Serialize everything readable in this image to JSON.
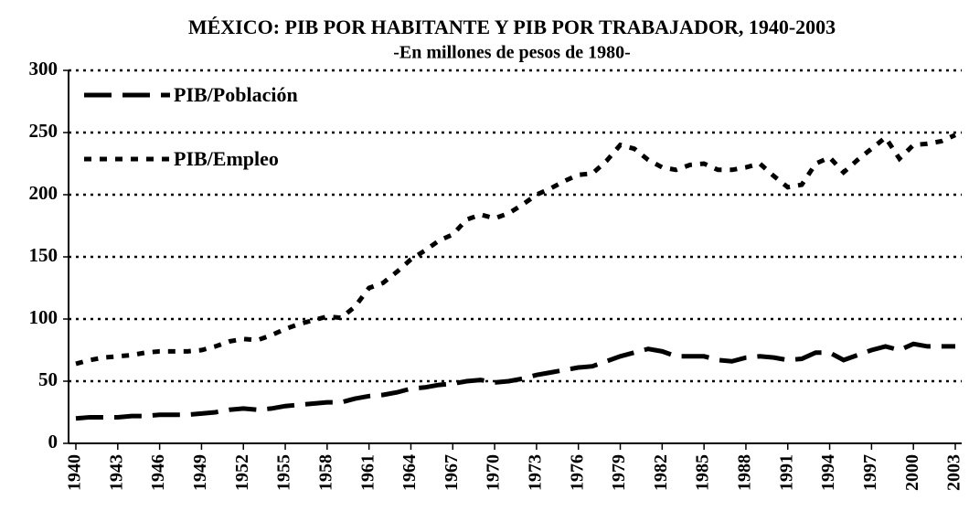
{
  "chart_data": {
    "type": "line",
    "title": "MÉXICO: PIB POR HABITANTE Y PIB POR TRABAJADOR, 1940-2003",
    "subtitle": "-En millones de pesos de 1980-",
    "x": [
      1940,
      1941,
      1942,
      1943,
      1944,
      1945,
      1946,
      1947,
      1948,
      1949,
      1950,
      1951,
      1952,
      1953,
      1954,
      1955,
      1956,
      1957,
      1958,
      1959,
      1960,
      1961,
      1962,
      1963,
      1964,
      1965,
      1966,
      1967,
      1968,
      1969,
      1970,
      1971,
      1972,
      1973,
      1974,
      1975,
      1976,
      1977,
      1978,
      1979,
      1980,
      1981,
      1982,
      1983,
      1984,
      1985,
      1986,
      1987,
      1988,
      1989,
      1990,
      1991,
      1992,
      1993,
      1994,
      1995,
      1996,
      1997,
      1998,
      1999,
      2000,
      2001,
      2002,
      2003
    ],
    "series": [
      {
        "name": "PIB/Población",
        "color": "#000000",
        "dash": "long",
        "values": [
          20,
          21,
          21,
          21,
          22,
          22,
          23,
          23,
          23,
          24,
          25,
          27,
          28,
          27,
          28,
          30,
          31,
          32,
          33,
          33,
          36,
          38,
          39,
          41,
          44,
          45,
          47,
          48,
          50,
          51,
          49,
          50,
          52,
          55,
          57,
          59,
          61,
          62,
          66,
          70,
          73,
          76,
          74,
          70,
          70,
          70,
          67,
          66,
          69,
          70,
          69,
          67,
          68,
          73,
          73,
          67,
          71,
          75,
          78,
          75,
          80,
          78,
          78,
          78
        ]
      },
      {
        "name": "PIB/Empleo",
        "color": "#000000",
        "dash": "short",
        "values": [
          64,
          67,
          69,
          70,
          71,
          73,
          74,
          74,
          74,
          75,
          78,
          82,
          84,
          83,
          87,
          92,
          96,
          99,
          102,
          101,
          110,
          125,
          129,
          138,
          148,
          155,
          163,
          168,
          180,
          184,
          181,
          185,
          192,
          200,
          205,
          211,
          216,
          217,
          227,
          240,
          237,
          228,
          222,
          220,
          224,
          225,
          220,
          220,
          222,
          225,
          215,
          206,
          208,
          225,
          230,
          218,
          228,
          237,
          246,
          229,
          240,
          241,
          243,
          248
        ]
      }
    ],
    "xlim": [
      1940,
      2003
    ],
    "xticks": [
      1940,
      1943,
      1946,
      1949,
      1952,
      1955,
      1958,
      1961,
      1964,
      1967,
      1970,
      1973,
      1976,
      1979,
      1982,
      1985,
      1988,
      1991,
      1994,
      1997,
      2000,
      2003
    ],
    "ylim": [
      0,
      300
    ],
    "yticks": [
      0,
      50,
      100,
      150,
      200,
      250,
      300
    ],
    "grid": true,
    "legend": "top-left"
  }
}
